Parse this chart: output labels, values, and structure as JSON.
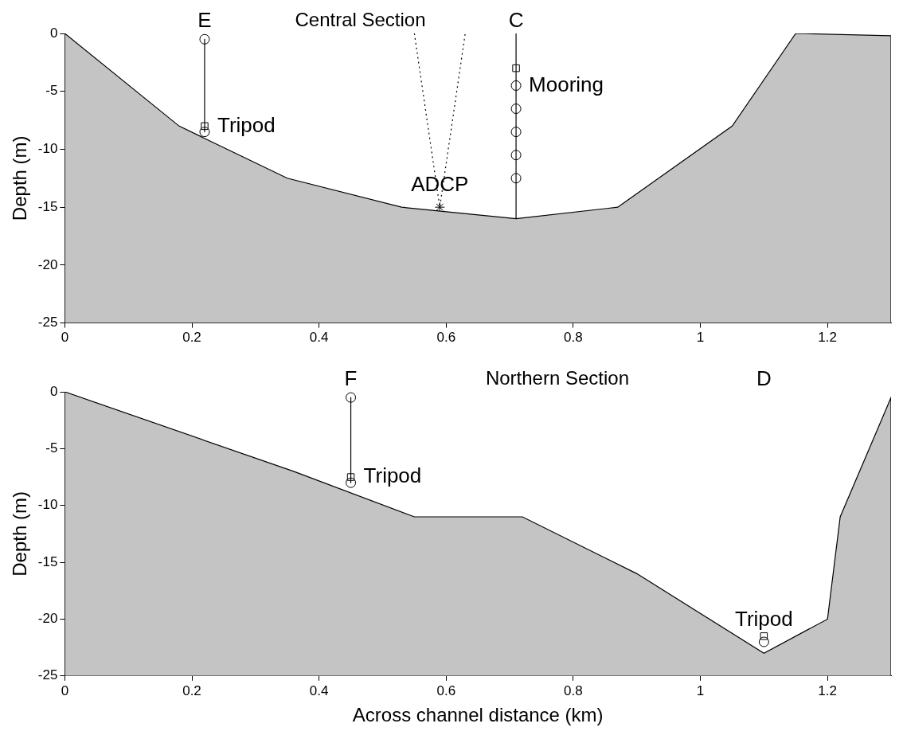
{
  "chart_data": [
    {
      "type": "area",
      "title": "Central Section",
      "ylabel": "Depth (m)",
      "xlim": [
        0,
        1.3
      ],
      "xticks": [
        0,
        0.2,
        0.4,
        0.6,
        0.8,
        1,
        1.2
      ],
      "ylim": [
        -25,
        0
      ],
      "yticks": [
        0,
        -5,
        -10,
        -15,
        -20,
        -25
      ],
      "grid": false,
      "series": [
        {
          "type": "area",
          "color": "#c4c4c4",
          "x": [
            0,
            0,
            0.18,
            0.35,
            0.53,
            0.71,
            0.87,
            1.05,
            1.15,
            1.3,
            1.3
          ],
          "values": [
            -25,
            0,
            -8,
            -12.5,
            -15,
            -16,
            -15,
            -8,
            0,
            -0.2,
            -25
          ]
        },
        {
          "type": "line",
          "color": "#000000",
          "line_style": "solid",
          "x": [
            0.22,
            0.22
          ],
          "values": [
            -0.5,
            -8.5
          ]
        },
        {
          "type": "line",
          "color": "#000000",
          "line_style": "solid",
          "x": [
            0.71,
            0.71
          ],
          "values": [
            0,
            -16
          ]
        },
        {
          "type": "line",
          "color": "#000000",
          "line_style": "dotted",
          "x": [
            0.55,
            0.59,
            0.63
          ],
          "values": [
            0,
            -15,
            0
          ]
        },
        {
          "type": "scatter",
          "color": "#000000",
          "marker": "circle",
          "x": [
            0.22,
            0.22,
            0.71,
            0.71,
            0.71,
            0.71,
            0.71
          ],
          "values": [
            -0.5,
            -8.5,
            -4.5,
            -6.5,
            -8.5,
            -10.5,
            -12.5
          ]
        },
        {
          "type": "scatter",
          "color": "#000000",
          "marker": "square",
          "x": [
            0.22,
            0.71
          ],
          "values": [
            -8,
            -3
          ]
        },
        {
          "type": "scatter",
          "color": "#000000",
          "marker": "cross",
          "x": [
            0.59
          ],
          "values": [
            -15
          ]
        }
      ],
      "annotations": [
        {
          "text": "E",
          "x": 0.22,
          "y": -0.5
        },
        {
          "text": "C",
          "x": 0.71,
          "y": 0
        },
        {
          "text": "Tripod",
          "x": 0.22,
          "y": -8
        },
        {
          "text": "Mooring",
          "x": 0.71,
          "y": -4.5
        },
        {
          "text": "ADCP",
          "x": 0.59,
          "y": -15
        }
      ]
    },
    {
      "type": "area",
      "title": "Northern Section",
      "xlabel": "Across channel distance (km)",
      "ylabel": "Depth (m)",
      "xlim": [
        0,
        1.3
      ],
      "xticks": [
        0,
        0.2,
        0.4,
        0.6,
        0.8,
        1,
        1.2
      ],
      "ylim": [
        -25,
        0
      ],
      "yticks": [
        0,
        -5,
        -10,
        -15,
        -20,
        -25
      ],
      "grid": false,
      "series": [
        {
          "type": "area",
          "color": "#c4c4c4",
          "x": [
            0,
            0,
            0.36,
            0.55,
            0.72,
            0.9,
            1.1,
            1.2,
            1.22,
            1.3,
            1.3
          ],
          "values": [
            -25,
            0,
            -7,
            -11,
            -11,
            -16,
            -23,
            -20,
            -11,
            -0.5,
            -25
          ]
        },
        {
          "type": "line",
          "color": "#000000",
          "line_style": "solid",
          "x": [
            0.45,
            0.45
          ],
          "values": [
            -0.5,
            -8
          ]
        },
        {
          "type": "scatter",
          "color": "#000000",
          "marker": "circle",
          "x": [
            0.45,
            0.45,
            1.1
          ],
          "values": [
            -0.5,
            -8,
            -22
          ]
        },
        {
          "type": "scatter",
          "color": "#000000",
          "marker": "square",
          "x": [
            0.45,
            1.1
          ],
          "values": [
            -7.5,
            -21.5
          ]
        }
      ],
      "annotations": [
        {
          "text": "F",
          "x": 0.45,
          "y": -0.5
        },
        "D",
        {
          "text": "Tripod",
          "x": 0.45,
          "y": -7.5
        },
        {
          "text": "Tripod",
          "x": 1.1,
          "y": -22
        }
      ]
    }
  ]
}
